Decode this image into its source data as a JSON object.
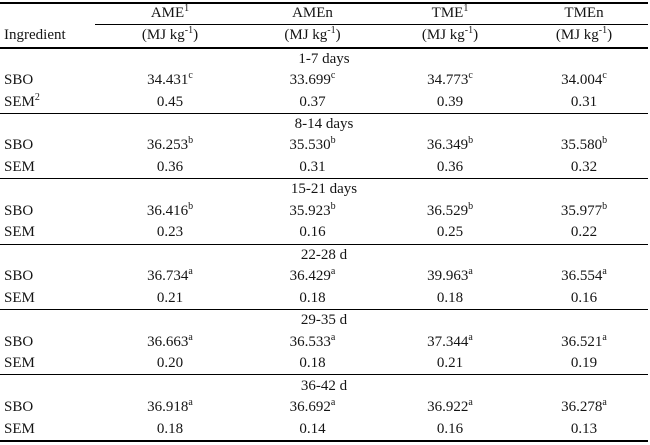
{
  "colors": {
    "background": "#ffffff",
    "text": "#141414",
    "rule": "#000000"
  },
  "header": {
    "ingredient_label": "Ingredient",
    "unit": {
      "pre": "(MJ kg",
      "sup": "-1",
      "post": ")"
    },
    "columns": [
      {
        "name": "AME",
        "sup": "1"
      },
      {
        "name": "AMEn",
        "sup": ""
      },
      {
        "name": "TME",
        "sup": "1"
      },
      {
        "name": "TMEn",
        "sup": ""
      }
    ]
  },
  "groups": [
    {
      "period": "1-7 days",
      "rows": [
        {
          "label": "SBO",
          "label_sup": "",
          "values": [
            {
              "v": "34.431",
              "sup": "c"
            },
            {
              "v": "33.699",
              "sup": "c"
            },
            {
              "v": "34.773",
              "sup": "c"
            },
            {
              "v": "34.004",
              "sup": "c"
            }
          ]
        },
        {
          "label": "SEM",
          "label_sup": "2",
          "values": [
            {
              "v": "0.45",
              "sup": ""
            },
            {
              "v": "0.37",
              "sup": ""
            },
            {
              "v": "0.39",
              "sup": ""
            },
            {
              "v": "0.31",
              "sup": ""
            }
          ]
        }
      ]
    },
    {
      "period": "8-14 days",
      "rows": [
        {
          "label": "SBO",
          "label_sup": "",
          "values": [
            {
              "v": "36.253",
              "sup": "b"
            },
            {
              "v": "35.530",
              "sup": "b"
            },
            {
              "v": "36.349",
              "sup": "b"
            },
            {
              "v": "35.580",
              "sup": "b"
            }
          ]
        },
        {
          "label": "SEM",
          "label_sup": "",
          "values": [
            {
              "v": "0.36",
              "sup": ""
            },
            {
              "v": "0.31",
              "sup": ""
            },
            {
              "v": "0.36",
              "sup": ""
            },
            {
              "v": "0.32",
              "sup": ""
            }
          ]
        }
      ]
    },
    {
      "period": "15-21 days",
      "rows": [
        {
          "label": "SBO",
          "label_sup": "",
          "values": [
            {
              "v": "36.416",
              "sup": "b"
            },
            {
              "v": "35.923",
              "sup": "b"
            },
            {
              "v": "36.529",
              "sup": "b"
            },
            {
              "v": "35.977",
              "sup": "b"
            }
          ]
        },
        {
          "label": "SEM",
          "label_sup": "",
          "values": [
            {
              "v": "0.23",
              "sup": ""
            },
            {
              "v": "0.16",
              "sup": ""
            },
            {
              "v": "0.25",
              "sup": ""
            },
            {
              "v": "0.22",
              "sup": ""
            }
          ]
        }
      ]
    },
    {
      "period": "22-28 d",
      "rows": [
        {
          "label": "SBO",
          "label_sup": "",
          "values": [
            {
              "v": "36.734",
              "sup": "a"
            },
            {
              "v": "36.429",
              "sup": "a"
            },
            {
              "v": "39.963",
              "sup": "a"
            },
            {
              "v": "36.554",
              "sup": "a"
            }
          ]
        },
        {
          "label": "SEM",
          "label_sup": "",
          "values": [
            {
              "v": "0.21",
              "sup": ""
            },
            {
              "v": "0.18",
              "sup": ""
            },
            {
              "v": "0.18",
              "sup": ""
            },
            {
              "v": "0.16",
              "sup": ""
            }
          ]
        }
      ]
    },
    {
      "period": "29-35 d",
      "rows": [
        {
          "label": "SBO",
          "label_sup": "",
          "values": [
            {
              "v": "36.663",
              "sup": "a"
            },
            {
              "v": "36.533",
              "sup": "a"
            },
            {
              "v": "37.344",
              "sup": "a"
            },
            {
              "v": "36.521",
              "sup": "a"
            }
          ]
        },
        {
          "label": "SEM",
          "label_sup": "",
          "values": [
            {
              "v": "0.20",
              "sup": ""
            },
            {
              "v": "0.18",
              "sup": ""
            },
            {
              "v": "0.21",
              "sup": ""
            },
            {
              "v": "0.19",
              "sup": ""
            }
          ]
        }
      ]
    },
    {
      "period": "36-42 d",
      "rows": [
        {
          "label": "SBO",
          "label_sup": "",
          "values": [
            {
              "v": "36.918",
              "sup": "a"
            },
            {
              "v": "36.692",
              "sup": "a"
            },
            {
              "v": "36.922",
              "sup": "a"
            },
            {
              "v": "36.278",
              "sup": "a"
            }
          ]
        },
        {
          "label": "SEM",
          "label_sup": "",
          "values": [
            {
              "v": "0.18",
              "sup": ""
            },
            {
              "v": "0.14",
              "sup": ""
            },
            {
              "v": "0.16",
              "sup": ""
            },
            {
              "v": "0.13",
              "sup": ""
            }
          ]
        }
      ]
    }
  ]
}
